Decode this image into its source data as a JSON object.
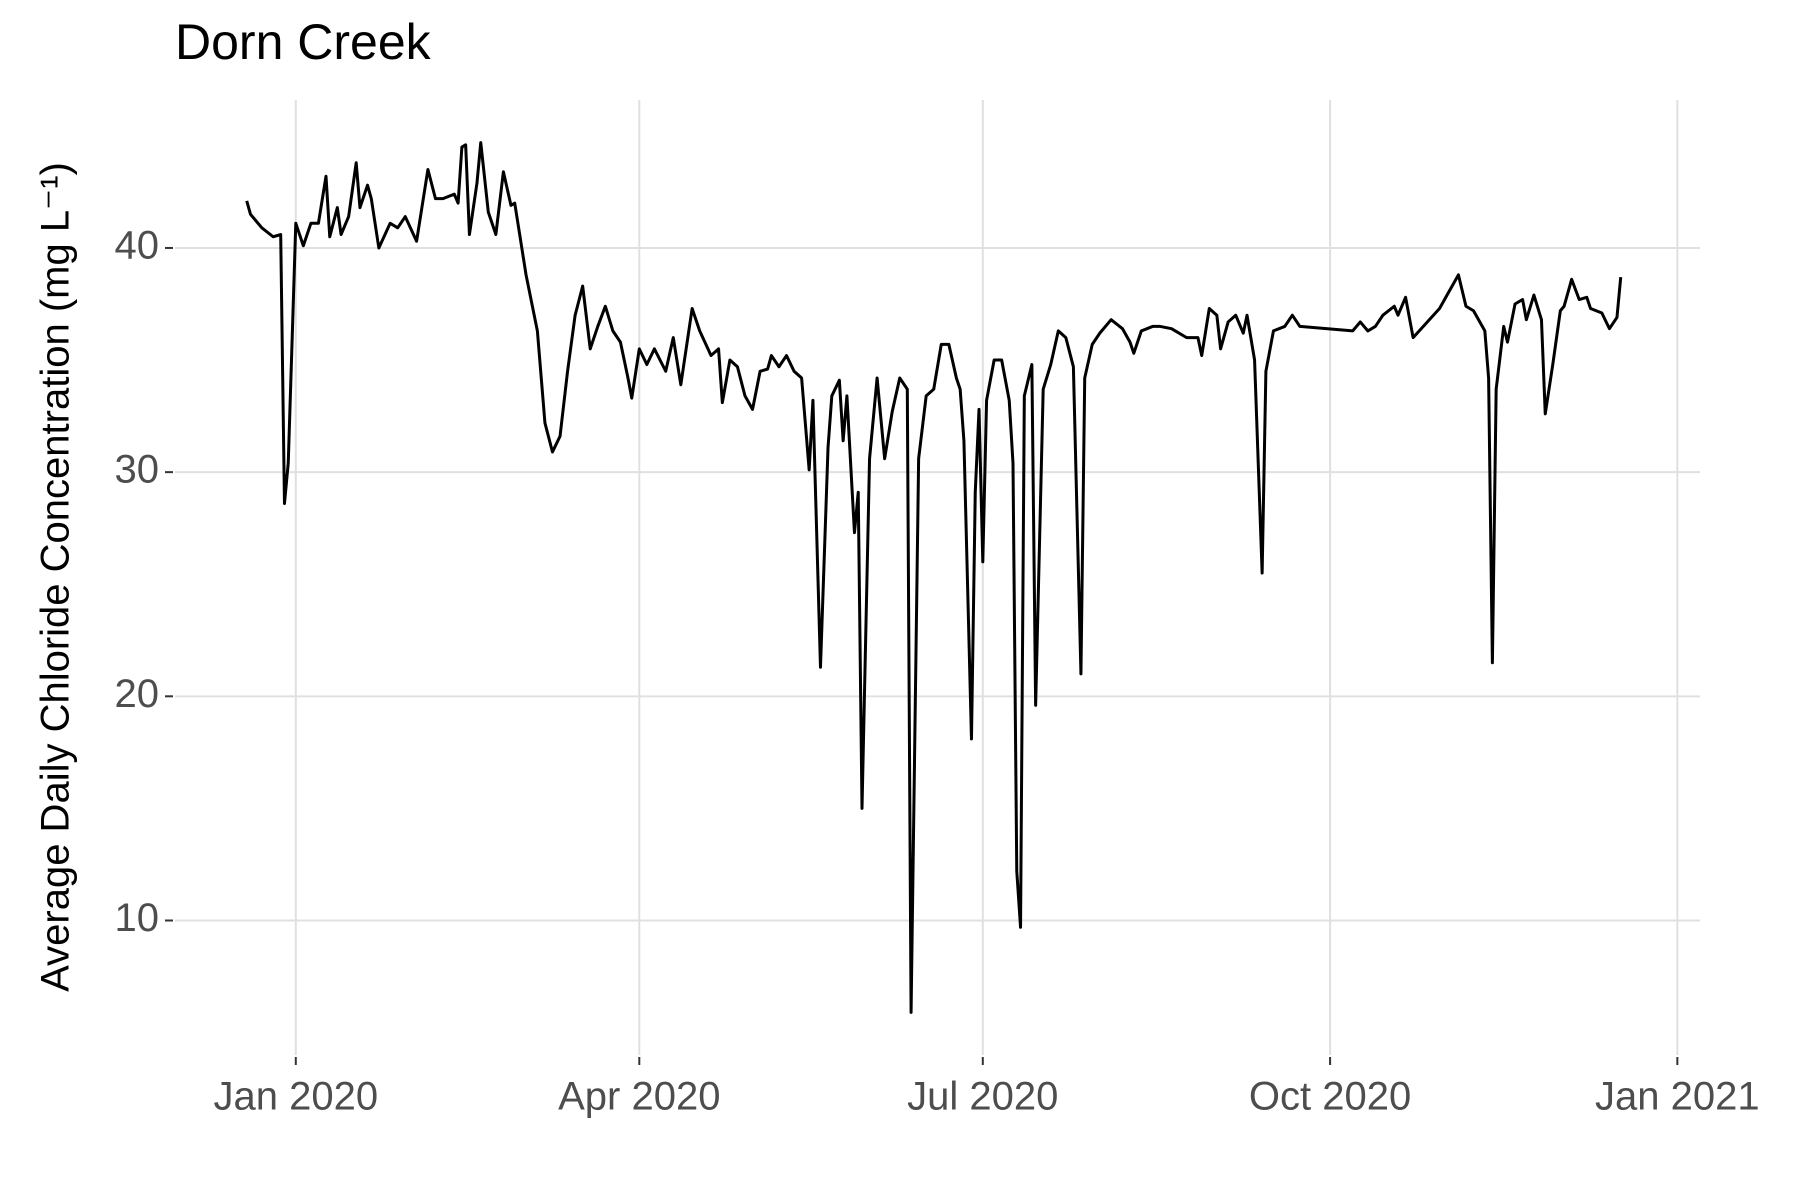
{
  "chart_data": {
    "type": "line",
    "title": "Dorn Creek",
    "y_label": "Average Daily Chloride Concentration (mg L⁻¹)",
    "color": "#000000",
    "grid": true,
    "xlim": [
      "2019-11-30",
      "2021-01-07"
    ],
    "xticks": [
      {
        "value": "2020-01-01",
        "label": "Jan 2020"
      },
      {
        "value": "2020-04-01",
        "label": "Apr 2020"
      },
      {
        "value": "2020-07-01",
        "label": "Jul 2020"
      },
      {
        "value": "2020-10-01",
        "label": "Oct 2020"
      },
      {
        "value": "2021-01-01",
        "label": "Jan 2021"
      }
    ],
    "ylim": [
      4,
      46.6
    ],
    "yticks": [
      10,
      20,
      30,
      40
    ],
    "x": [
      "2019-12-19",
      "2019-12-20",
      "2019-12-23",
      "2019-12-26",
      "2019-12-28",
      "2019-12-29",
      "2019-12-30",
      "2020-01-01",
      "2020-01-03",
      "2020-01-05",
      "2020-01-07",
      "2020-01-09",
      "2020-01-10",
      "2020-01-12",
      "2020-01-13",
      "2020-01-15",
      "2020-01-17",
      "2020-01-18",
      "2020-01-20",
      "2020-01-21",
      "2020-01-23",
      "2020-01-26",
      "2020-01-28",
      "2020-01-30",
      "2020-02-02",
      "2020-02-05",
      "2020-02-07",
      "2020-02-09",
      "2020-02-12",
      "2020-02-13",
      "2020-02-14",
      "2020-02-15",
      "2020-02-16",
      "2020-02-18",
      "2020-02-19",
      "2020-02-21",
      "2020-02-23",
      "2020-02-25",
      "2020-02-27",
      "2020-02-28",
      "2020-03-02",
      "2020-03-05",
      "2020-03-07",
      "2020-03-09",
      "2020-03-11",
      "2020-03-13",
      "2020-03-15",
      "2020-03-17",
      "2020-03-19",
      "2020-03-21",
      "2020-03-23",
      "2020-03-25",
      "2020-03-27",
      "2020-03-29",
      "2020-03-30",
      "2020-04-01",
      "2020-04-03",
      "2020-04-05",
      "2020-04-08",
      "2020-04-10",
      "2020-04-12",
      "2020-04-15",
      "2020-04-17",
      "2020-04-20",
      "2020-04-22",
      "2020-04-23",
      "2020-04-25",
      "2020-04-27",
      "2020-04-29",
      "2020-05-01",
      "2020-05-03",
      "2020-05-05",
      "2020-05-06",
      "2020-05-08",
      "2020-05-10",
      "2020-05-12",
      "2020-05-14",
      "2020-05-16",
      "2020-05-17",
      "2020-05-19",
      "2020-05-21",
      "2020-05-22",
      "2020-05-24",
      "2020-05-25",
      "2020-05-26",
      "2020-05-28",
      "2020-05-29",
      "2020-05-30",
      "2020-06-01",
      "2020-06-03",
      "2020-06-05",
      "2020-06-07",
      "2020-06-09",
      "2020-06-11",
      "2020-06-12",
      "2020-06-14",
      "2020-06-16",
      "2020-06-18",
      "2020-06-20",
      "2020-06-22",
      "2020-06-24",
      "2020-06-25",
      "2020-06-26",
      "2020-06-28",
      "2020-06-29",
      "2020-06-30",
      "2020-07-01",
      "2020-07-02",
      "2020-07-04",
      "2020-07-06",
      "2020-07-08",
      "2020-07-09",
      "2020-07-10",
      "2020-07-11",
      "2020-07-12",
      "2020-07-14",
      "2020-07-15",
      "2020-07-17",
      "2020-07-19",
      "2020-07-21",
      "2020-07-23",
      "2020-07-25",
      "2020-07-27",
      "2020-07-28",
      "2020-07-30",
      "2020-08-01",
      "2020-08-04",
      "2020-08-07",
      "2020-08-09",
      "2020-08-10",
      "2020-08-12",
      "2020-08-15",
      "2020-08-17",
      "2020-08-20",
      "2020-08-24",
      "2020-08-27",
      "2020-08-28",
      "2020-08-30",
      "2020-09-01",
      "2020-09-02",
      "2020-09-04",
      "2020-09-06",
      "2020-09-08",
      "2020-09-09",
      "2020-09-11",
      "2020-09-13",
      "2020-09-14",
      "2020-09-16",
      "2020-09-19",
      "2020-09-21",
      "2020-09-23",
      "2020-09-30",
      "2020-10-07",
      "2020-10-09",
      "2020-10-11",
      "2020-10-13",
      "2020-10-15",
      "2020-10-18",
      "2020-10-19",
      "2020-10-21",
      "2020-10-23",
      "2020-10-30",
      "2020-11-01",
      "2020-11-04",
      "2020-11-06",
      "2020-11-08",
      "2020-11-11",
      "2020-11-12",
      "2020-11-13",
      "2020-11-14",
      "2020-11-16",
      "2020-11-17",
      "2020-11-19",
      "2020-11-21",
      "2020-11-22",
      "2020-11-24",
      "2020-11-26",
      "2020-11-27",
      "2020-11-29",
      "2020-12-01",
      "2020-12-02",
      "2020-12-04",
      "2020-12-06",
      "2020-12-08",
      "2020-12-09",
      "2020-12-12",
      "2020-12-14",
      "2020-12-16",
      "2020-12-17"
    ],
    "values": [
      42.1,
      41.5,
      40.9,
      40.5,
      40.6,
      28.6,
      30.4,
      41.1,
      40.1,
      41.1,
      41.1,
      43.2,
      40.5,
      41.8,
      40.6,
      41.4,
      43.8,
      41.8,
      42.8,
      42.2,
      40.0,
      41.1,
      40.9,
      41.4,
      40.3,
      43.5,
      42.2,
      42.2,
      42.4,
      42.0,
      44.5,
      44.6,
      40.6,
      42.9,
      44.7,
      41.6,
      40.6,
      43.4,
      41.9,
      42.0,
      38.8,
      36.3,
      32.2,
      30.9,
      31.6,
      34.5,
      37.0,
      38.3,
      35.5,
      36.5,
      37.4,
      36.3,
      35.8,
      34.2,
      33.3,
      35.5,
      34.8,
      35.5,
      34.5,
      36.0,
      33.9,
      37.3,
      36.3,
      35.2,
      35.5,
      33.1,
      35.0,
      34.7,
      33.4,
      32.8,
      34.5,
      34.6,
      35.2,
      34.7,
      35.2,
      34.5,
      34.2,
      30.1,
      33.2,
      21.3,
      31.1,
      33.4,
      34.1,
      31.4,
      33.4,
      27.3,
      29.1,
      15.0,
      30.6,
      34.2,
      30.6,
      32.7,
      34.2,
      33.7,
      5.9,
      30.6,
      33.4,
      33.7,
      35.7,
      35.7,
      34.2,
      33.7,
      31.4,
      18.1,
      29.1,
      32.8,
      26.0,
      33.2,
      35.0,
      35.0,
      33.2,
      30.4,
      12.2,
      9.7,
      33.4,
      34.8,
      19.6,
      33.7,
      34.8,
      36.3,
      36.0,
      34.7,
      21.0,
      34.2,
      35.7,
      36.2,
      36.8,
      36.4,
      35.8,
      35.3,
      36.3,
      36.5,
      36.5,
      36.4,
      36.0,
      36.0,
      35.2,
      37.3,
      37.0,
      35.5,
      36.7,
      37.0,
      36.2,
      37.0,
      35.0,
      25.5,
      34.5,
      36.3,
      36.5,
      37.0,
      36.5,
      36.4,
      36.3,
      36.7,
      36.3,
      36.5,
      37.0,
      37.4,
      37.0,
      37.8,
      36.0,
      37.3,
      37.9,
      38.8,
      37.4,
      37.2,
      36.3,
      34.2,
      21.5,
      33.7,
      36.5,
      35.8,
      37.5,
      37.7,
      36.8,
      37.9,
      36.8,
      32.6,
      34.8,
      37.2,
      37.4,
      38.6,
      37.7,
      37.8,
      37.3,
      37.1,
      36.4,
      36.9,
      38.7
    ]
  }
}
